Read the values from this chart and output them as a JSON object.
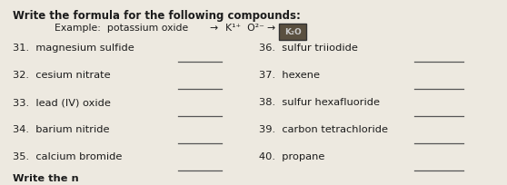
{
  "bg_color": "#ede9e0",
  "title_line1": "Write the formula for the following compounds:",
  "left_items": [
    "31.  magnesium sulfide",
    "32.  cesium nitrate",
    "33.  lead (IV) oxide",
    "34.  barium nitride",
    "35.  calcium bromide"
  ],
  "right_items": [
    "36.  sulfur triiodide",
    "37.  hexene",
    "38.  sulfur hexafluoride",
    "39.  carbon tetrachloride",
    "40.  propane"
  ],
  "bottom_text": "Write the n",
  "font_size_title": 8.5,
  "font_size_example": 7.8,
  "font_size_body": 8.2,
  "text_color": "#1c1c1c",
  "line_color": "#555555",
  "box_facecolor": "#5a5040"
}
